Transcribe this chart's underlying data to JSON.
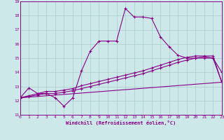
{
  "xlabel": "Windchill (Refroidissement éolien,°C)",
  "background_color": "#cce8e8",
  "grid_color": "#aacccc",
  "line_color": "#880088",
  "xmin": 0,
  "xmax": 23,
  "ymin": 11,
  "ymax": 19,
  "yticks": [
    11,
    12,
    13,
    14,
    15,
    16,
    17,
    18,
    19
  ],
  "xticks": [
    0,
    1,
    2,
    3,
    4,
    5,
    6,
    7,
    8,
    9,
    10,
    11,
    12,
    13,
    14,
    15,
    16,
    17,
    18,
    19,
    20,
    21,
    22,
    23
  ],
  "series": [
    {
      "x": [
        0,
        1,
        2,
        3,
        4,
        5,
        6,
        7,
        8,
        9,
        10,
        11,
        12,
        13,
        14,
        15,
        16,
        17,
        18,
        19,
        20,
        21,
        22,
        23
      ],
      "y": [
        12.2,
        12.9,
        12.5,
        12.5,
        12.2,
        11.6,
        12.2,
        14.1,
        15.5,
        16.2,
        16.2,
        16.2,
        18.5,
        17.9,
        17.9,
        17.8,
        16.5,
        15.8,
        15.2,
        15.0,
        15.0,
        15.1,
        15.0,
        14.0
      ],
      "markers": true
    },
    {
      "x": [
        0,
        1,
        2,
        3,
        4,
        5,
        6,
        7,
        8,
        9,
        10,
        11,
        12,
        13,
        14,
        15,
        16,
        17,
        18,
        19,
        20,
        21,
        22,
        23
      ],
      "y": [
        12.2,
        12.3,
        12.4,
        12.5,
        12.5,
        12.6,
        12.7,
        12.85,
        13.0,
        13.15,
        13.3,
        13.45,
        13.6,
        13.75,
        13.9,
        14.1,
        14.3,
        14.5,
        14.7,
        14.85,
        15.0,
        15.0,
        15.0,
        13.3
      ],
      "markers": true
    },
    {
      "x": [
        0,
        1,
        2,
        3,
        4,
        5,
        6,
        7,
        8,
        9,
        10,
        11,
        12,
        13,
        14,
        15,
        16,
        17,
        18,
        19,
        20,
        21,
        22,
        23
      ],
      "y": [
        12.2,
        12.35,
        12.5,
        12.65,
        12.65,
        12.75,
        12.85,
        13.05,
        13.2,
        13.35,
        13.5,
        13.65,
        13.8,
        13.95,
        14.1,
        14.3,
        14.5,
        14.7,
        14.9,
        15.05,
        15.15,
        15.15,
        15.15,
        13.3
      ],
      "markers": true
    },
    {
      "x": [
        0,
        23
      ],
      "y": [
        12.2,
        13.3
      ],
      "markers": false
    }
  ]
}
